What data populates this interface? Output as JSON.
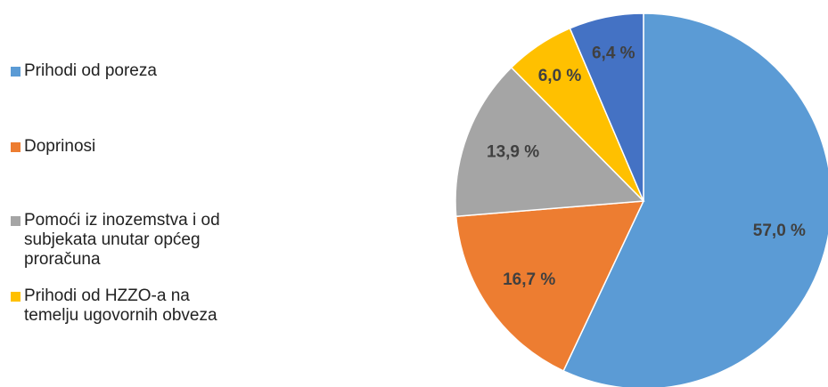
{
  "chart_data": {
    "type": "pie",
    "categories": [
      "Prihodi od poreza",
      "Doprinosi",
      "Pomoći iz inozemstva i od subjekata unutar općeg proračuna",
      "Prihodi od HZZO-a na temelju ugovornih obveza",
      null
    ],
    "values": [
      57.0,
      16.7,
      13.9,
      6.0,
      6.4
    ],
    "value_labels": [
      "57,0 %",
      "16,7 %",
      "13,9 %",
      "6,0 %",
      "6,4 %"
    ],
    "colors": [
      "#5B9BD5",
      "#ED7D31",
      "#A5A5A5",
      "#FFC000",
      "#4472C4"
    ],
    "legend": "left"
  }
}
